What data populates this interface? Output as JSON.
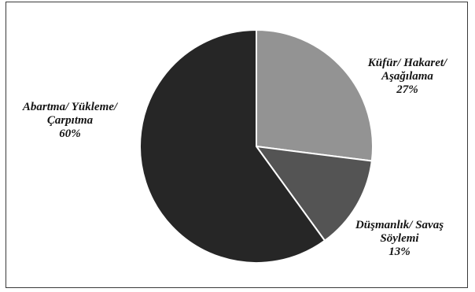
{
  "chart_data": {
    "type": "pie",
    "title": "",
    "slices": [
      {
        "label_lines": [
          "Küfür/ Hakaret/",
          "Aşağılama"
        ],
        "value_text": "27%",
        "value": 27,
        "color": "#939393"
      },
      {
        "label_lines": [
          "Düşmanlık/ Savaş",
          "Söylemi"
        ],
        "value_text": "13%",
        "value": 13,
        "color": "#545454"
      },
      {
        "label_lines": [
          "Abartma/ Yükleme/",
          "Çarpıtma"
        ],
        "value_text": "60%",
        "value": 60,
        "color": "#262626"
      }
    ],
    "start_angle_deg": 0,
    "direction": "clockwise",
    "slice_border_color": "#ffffff",
    "legend": "none"
  }
}
